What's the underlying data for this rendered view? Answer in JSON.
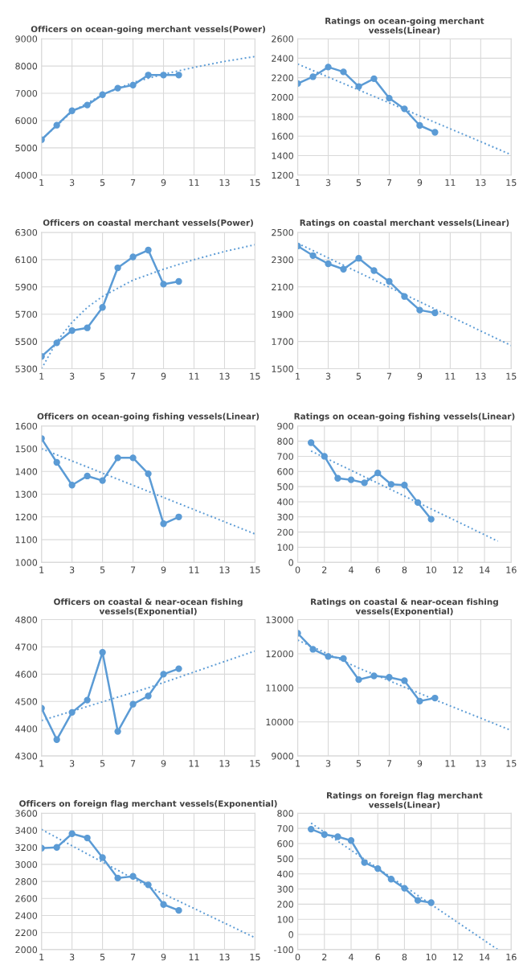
{
  "chart_data": [
    {
      "type": "line",
      "title": "Officers on ocean-going merchant vessels(Power)",
      "xlim": [
        1,
        15
      ],
      "xticks": [
        1,
        3,
        5,
        7,
        9,
        11,
        13,
        15
      ],
      "ylim": [
        4000,
        9000
      ],
      "yticks": [
        4000,
        5000,
        6000,
        7000,
        8000,
        9000
      ],
      "grid": true,
      "legend": false,
      "series": [
        {
          "color": "#5b9bd5",
          "marker": "circle",
          "line_style": "solid",
          "x": [
            1,
            2,
            3,
            4,
            5,
            6,
            7,
            8,
            9,
            10
          ],
          "values": [
            5300,
            5830,
            6360,
            6570,
            6950,
            7190,
            7300,
            7670,
            7670,
            7670
          ]
        },
        {
          "color": "#5b9bd5",
          "marker": "none",
          "line_style": "dotted",
          "x": [
            1,
            3,
            5,
            7,
            9,
            11,
            13,
            15
          ],
          "values": [
            5300,
            6330,
            6950,
            7400,
            7700,
            7950,
            8170,
            8350
          ]
        }
      ]
    },
    {
      "type": "line",
      "title": "Ratings on ocean-going merchant vessels(Linear)",
      "xlim": [
        1,
        15
      ],
      "xticks": [
        1,
        3,
        5,
        7,
        9,
        11,
        13,
        15
      ],
      "ylim": [
        1200,
        2600
      ],
      "yticks": [
        1200,
        1400,
        1600,
        1800,
        2000,
        2200,
        2400,
        2600
      ],
      "grid": true,
      "legend": false,
      "series": [
        {
          "color": "#5b9bd5",
          "marker": "circle",
          "line_style": "solid",
          "x": [
            1,
            2,
            3,
            4,
            5,
            6,
            7,
            8,
            9,
            10
          ],
          "values": [
            2140,
            2210,
            2310,
            2260,
            2110,
            2190,
            1990,
            1880,
            1710,
            1640
          ]
        },
        {
          "color": "#5b9bd5",
          "marker": "none",
          "line_style": "dotted",
          "x": [
            1,
            15
          ],
          "values": [
            2340,
            1410
          ]
        }
      ]
    },
    {
      "type": "line",
      "title": "Officers on coastal merchant vessels(Power)",
      "xlim": [
        1,
        15
      ],
      "xticks": [
        1,
        3,
        5,
        7,
        9,
        11,
        13,
        15
      ],
      "ylim": [
        5300,
        6300
      ],
      "yticks": [
        5300,
        5500,
        5700,
        5900,
        6100,
        6300
      ],
      "grid": true,
      "legend": false,
      "series": [
        {
          "color": "#5b9bd5",
          "marker": "circle",
          "line_style": "solid",
          "x": [
            1,
            2,
            3,
            4,
            5,
            6,
            7,
            8,
            9,
            10
          ],
          "values": [
            5390,
            5490,
            5580,
            5600,
            5750,
            6040,
            6120,
            6170,
            5920,
            5940
          ]
        },
        {
          "color": "#5b9bd5",
          "marker": "none",
          "line_style": "dotted",
          "x": [
            1,
            2,
            3,
            4,
            5,
            7,
            9,
            11,
            13,
            15
          ],
          "values": [
            5300,
            5500,
            5640,
            5750,
            5830,
            5950,
            6030,
            6100,
            6160,
            6210
          ]
        }
      ]
    },
    {
      "type": "line",
      "title": "Ratings on coastal merchant vessels(Linear)",
      "xlim": [
        1,
        15
      ],
      "xticks": [
        1,
        3,
        5,
        7,
        9,
        11,
        13,
        15
      ],
      "ylim": [
        1500,
        2500
      ],
      "yticks": [
        1500,
        1700,
        1900,
        2100,
        2300,
        2500
      ],
      "grid": true,
      "legend": false,
      "series": [
        {
          "color": "#5b9bd5",
          "marker": "circle",
          "line_style": "solid",
          "x": [
            1,
            2,
            3,
            4,
            5,
            6,
            7,
            8,
            9,
            10
          ],
          "values": [
            2400,
            2330,
            2270,
            2230,
            2310,
            2220,
            2140,
            2030,
            1930,
            1910
          ]
        },
        {
          "color": "#5b9bd5",
          "marker": "none",
          "line_style": "dotted",
          "x": [
            1,
            15
          ],
          "values": [
            2420,
            1670
          ]
        }
      ]
    },
    {
      "type": "line",
      "title": "Officers on ocean-going fishing vessels(Linear)",
      "xlim": [
        1,
        15
      ],
      "xticks": [
        1,
        3,
        5,
        7,
        9,
        11,
        13,
        15
      ],
      "ylim": [
        1000,
        1600
      ],
      "yticks": [
        1000,
        1100,
        1200,
        1300,
        1400,
        1500,
        1600
      ],
      "grid": true,
      "legend": false,
      "series": [
        {
          "color": "#5b9bd5",
          "marker": "circle",
          "line_style": "solid",
          "x": [
            1,
            2,
            3,
            4,
            5,
            6,
            7,
            8,
            9,
            10
          ],
          "values": [
            1545,
            1440,
            1340,
            1380,
            1360,
            1460,
            1460,
            1390,
            1170,
            1200
          ]
        },
        {
          "color": "#5b9bd5",
          "marker": "none",
          "line_style": "dotted",
          "x": [
            1,
            15
          ],
          "values": [
            1500,
            1125
          ]
        }
      ]
    },
    {
      "type": "line",
      "title": "Ratings on ocean-going fishing vessels(Linear)",
      "xlim": [
        0,
        16
      ],
      "xticks": [
        0,
        2,
        4,
        6,
        8,
        10,
        12,
        14,
        16
      ],
      "ylim": [
        0,
        900
      ],
      "yticks": [
        0,
        100,
        200,
        300,
        400,
        500,
        600,
        700,
        800,
        900
      ],
      "grid": true,
      "legend": false,
      "series": [
        {
          "color": "#5b9bd5",
          "marker": "circle",
          "line_style": "solid",
          "x": [
            1,
            2,
            3,
            4,
            5,
            6,
            7,
            8,
            9,
            10
          ],
          "values": [
            790,
            700,
            555,
            545,
            525,
            590,
            515,
            510,
            395,
            285
          ]
        },
        {
          "color": "#5b9bd5",
          "marker": "none",
          "line_style": "dotted",
          "x": [
            1,
            15
          ],
          "values": [
            735,
            140
          ]
        }
      ]
    },
    {
      "type": "line",
      "title": "Officers on coastal & near-ocean fishing\nvessels(Exponential)",
      "xlim": [
        1,
        15
      ],
      "xticks": [
        1,
        3,
        5,
        7,
        9,
        11,
        13,
        15
      ],
      "ylim": [
        4300,
        4800
      ],
      "yticks": [
        4300,
        4400,
        4500,
        4600,
        4700,
        4800
      ],
      "grid": true,
      "legend": false,
      "series": [
        {
          "color": "#5b9bd5",
          "marker": "circle",
          "line_style": "solid",
          "x": [
            1,
            2,
            3,
            4,
            5,
            6,
            7,
            8,
            9,
            10
          ],
          "values": [
            4475,
            4360,
            4460,
            4505,
            4680,
            4390,
            4490,
            4520,
            4600,
            4620
          ]
        },
        {
          "color": "#5b9bd5",
          "marker": "none",
          "line_style": "dotted",
          "x": [
            1,
            8,
            15
          ],
          "values": [
            4430,
            4550,
            4685
          ]
        }
      ]
    },
    {
      "type": "line",
      "title": "Ratings on coastal & near-ocean fishing\nvessels(Exponential)",
      "xlim": [
        1,
        15
      ],
      "xticks": [
        1,
        3,
        5,
        7,
        9,
        11,
        13,
        15
      ],
      "ylim": [
        9000,
        13000
      ],
      "yticks": [
        9000,
        10000,
        11000,
        12000,
        13000
      ],
      "grid": true,
      "legend": false,
      "series": [
        {
          "color": "#5b9bd5",
          "marker": "circle",
          "line_style": "solid",
          "x": [
            1,
            2,
            3,
            4,
            5,
            6,
            7,
            8,
            9,
            10
          ],
          "values": [
            12600,
            12130,
            11920,
            11860,
            11240,
            11350,
            11310,
            11210,
            10610,
            10700
          ]
        },
        {
          "color": "#5b9bd5",
          "marker": "none",
          "line_style": "dotted",
          "x": [
            1,
            5,
            10,
            15
          ],
          "values": [
            12400,
            11580,
            10650,
            9750
          ]
        }
      ]
    },
    {
      "type": "line",
      "title": "Officers on foreign flag merchant vessels(Exponential)",
      "xlim": [
        1,
        15
      ],
      "xticks": [
        1,
        3,
        5,
        7,
        9,
        11,
        13,
        15
      ],
      "ylim": [
        2000,
        3600
      ],
      "yticks": [
        2000,
        2200,
        2400,
        2600,
        2800,
        3000,
        3200,
        3400,
        3600
      ],
      "grid": true,
      "legend": false,
      "series": [
        {
          "color": "#5b9bd5",
          "marker": "circle",
          "line_style": "solid",
          "x": [
            1,
            2,
            3,
            4,
            5,
            6,
            7,
            8,
            9,
            10
          ],
          "values": [
            3190,
            3200,
            3360,
            3310,
            3080,
            2840,
            2860,
            2760,
            2530,
            2460
          ]
        },
        {
          "color": "#5b9bd5",
          "marker": "none",
          "line_style": "dotted",
          "x": [
            1,
            8,
            15
          ],
          "values": [
            3410,
            2740,
            2140
          ]
        }
      ]
    },
    {
      "type": "line",
      "title": "Ratings on foreign flag merchant vessels(Linear)",
      "xlim": [
        0,
        16
      ],
      "xticks": [
        0,
        2,
        4,
        6,
        8,
        10,
        12,
        14,
        16
      ],
      "ylim": [
        -100,
        800
      ],
      "yticks": [
        -100,
        0,
        100,
        200,
        300,
        400,
        500,
        600,
        700,
        800
      ],
      "grid": true,
      "legend": false,
      "series": [
        {
          "color": "#5b9bd5",
          "marker": "circle",
          "line_style": "solid",
          "x": [
            1,
            2,
            3,
            4,
            5,
            6,
            7,
            8,
            9,
            10
          ],
          "values": [
            695,
            660,
            645,
            620,
            475,
            435,
            365,
            305,
            225,
            210
          ]
        },
        {
          "color": "#5b9bd5",
          "marker": "none",
          "line_style": "dotted",
          "x": [
            1,
            15
          ],
          "values": [
            735,
            -100
          ]
        }
      ]
    }
  ]
}
